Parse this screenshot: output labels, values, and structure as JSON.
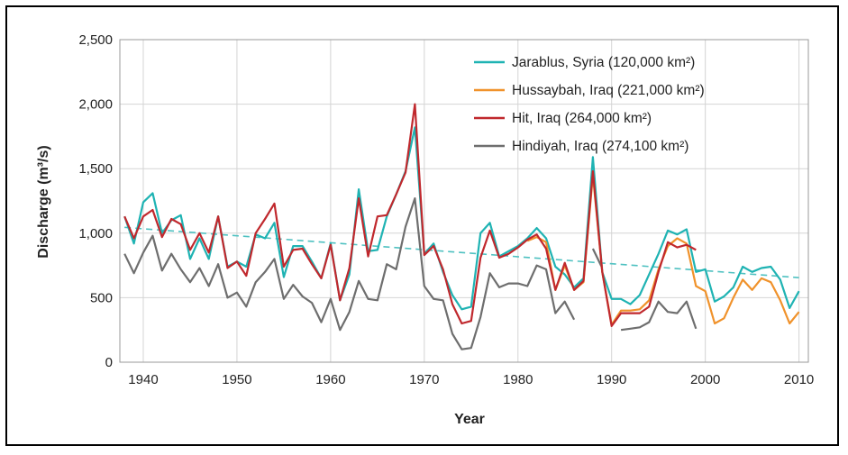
{
  "chart_data": {
    "type": "line",
    "title": "",
    "xlabel": "Year",
    "ylabel": "Discharge (m³/s)",
    "xlim": [
      1937.5,
      2011
    ],
    "ylim": [
      0,
      2500
    ],
    "xticks": [
      1940,
      1950,
      1960,
      1970,
      1980,
      1990,
      2000,
      2010
    ],
    "yticks": [
      0,
      500,
      1000,
      1500,
      2000,
      2500
    ],
    "xtick_labels": [
      "1940",
      "1950",
      "1960",
      "1970",
      "1980",
      "1990",
      "2000",
      "2010"
    ],
    "ytick_labels": [
      "0",
      "500",
      "1,000",
      "1,500",
      "2,000",
      "2,500"
    ],
    "grid": "vertical and horizontal",
    "legend_position": "top-right",
    "trendline": {
      "series": "Jarablus, Syria",
      "style": "dashed",
      "color": "#4fc1c1",
      "x": [
        1938,
        2010
      ],
      "y": [
        1045,
        655
      ]
    },
    "series": [
      {
        "name": "Jarablus, Syria (120,000 km²)",
        "color": "#1fb3b3",
        "x": [
          1938,
          1939,
          1940,
          1941,
          1942,
          1943,
          1944,
          1945,
          1946,
          1947,
          1948,
          1949,
          1950,
          1951,
          1952,
          1953,
          1954,
          1955,
          1956,
          1957,
          1958,
          1959,
          1960,
          1961,
          1962,
          1963,
          1964,
          1965,
          1966,
          1967,
          1968,
          1969,
          1970,
          1971,
          1972,
          1973,
          1974,
          1975,
          1976,
          1977,
          1978,
          1979,
          1980,
          1981,
          1982,
          1983,
          1984,
          1985,
          1986,
          1987,
          1988,
          1989,
          1990,
          1991,
          1992,
          1993,
          1994,
          1995,
          1996,
          1997,
          1998,
          1999,
          2000,
          2001,
          2002,
          2003,
          2004,
          2005,
          2006,
          2007,
          2008,
          2009,
          2010
        ],
        "y": [
          1130,
          920,
          1240,
          1310,
          1000,
          1100,
          1140,
          800,
          960,
          800,
          1130,
          740,
          780,
          740,
          990,
          960,
          1080,
          660,
          900,
          900,
          780,
          650,
          920,
          480,
          680,
          1340,
          860,
          870,
          1130,
          1300,
          1480,
          1820,
          840,
          920,
          700,
          520,
          410,
          430,
          1000,
          1080,
          820,
          860,
          900,
          960,
          1040,
          960,
          740,
          680,
          580,
          650,
          1590,
          700,
          490,
          490,
          450,
          520,
          680,
          840,
          1020,
          990,
          1030,
          700,
          720,
          470,
          510,
          580,
          740,
          700,
          730,
          740,
          640,
          420,
          550
        ]
      },
      {
        "name": "Hussaybah, Iraq (221,000 km²)",
        "color": "#f0922b",
        "x": [
          1981,
          1982,
          1983,
          1984,
          1985,
          1986,
          1987,
          1988,
          1989,
          1990,
          1991,
          1992,
          1993,
          1994,
          1995,
          1996,
          1997,
          1998,
          1999,
          2000,
          2001,
          2002,
          2003,
          2004,
          2005,
          2006,
          2007,
          2008,
          2009,
          2010
        ],
        "y": [
          940,
          970,
          930,
          560,
          750,
          560,
          620,
          1450,
          700,
          290,
          400,
          400,
          410,
          480,
          720,
          900,
          960,
          920,
          590,
          550,
          300,
          340,
          500,
          640,
          560,
          650,
          620,
          480,
          300,
          390
        ]
      },
      {
        "name": "Hit, Iraq (264,000 km²)",
        "color": "#c0282d",
        "x": [
          1938,
          1939,
          1940,
          1941,
          1942,
          1943,
          1944,
          1945,
          1946,
          1947,
          1948,
          1949,
          1950,
          1951,
          1952,
          1953,
          1954,
          1955,
          1956,
          1957,
          1958,
          1959,
          1960,
          1961,
          1962,
          1963,
          1964,
          1965,
          1966,
          1967,
          1968,
          1969,
          1970,
          1971,
          1972,
          1973,
          1974,
          1975,
          1976,
          1977,
          1978,
          1979,
          1980,
          1981,
          1982,
          1983,
          1984,
          1985,
          1986,
          1987,
          1988,
          1989,
          1990,
          1991,
          1992,
          1993,
          1994,
          1995,
          1996,
          1997,
          1998,
          1999
        ],
        "y": [
          1130,
          960,
          1130,
          1180,
          970,
          1110,
          1070,
          870,
          1000,
          850,
          1130,
          730,
          780,
          670,
          1000,
          1110,
          1230,
          740,
          870,
          880,
          760,
          650,
          910,
          480,
          730,
          1270,
          820,
          1130,
          1140,
          1300,
          1470,
          2000,
          830,
          900,
          720,
          450,
          300,
          320,
          810,
          1020,
          810,
          840,
          890,
          950,
          990,
          880,
          560,
          770,
          560,
          630,
          1480,
          700,
          280,
          380,
          380,
          380,
          430,
          700,
          930,
          890,
          910,
          870
        ]
      },
      {
        "name": "Hindiyah, Iraq (274,100 km²)",
        "color": "#6e6e6e",
        "x": [
          1938,
          1939,
          1940,
          1941,
          1942,
          1943,
          1944,
          1945,
          1946,
          1947,
          1948,
          1949,
          1950,
          1951,
          1952,
          1953,
          1954,
          1955,
          1956,
          1957,
          1958,
          1959,
          1960,
          1961,
          1962,
          1963,
          1964,
          1965,
          1966,
          1967,
          1968,
          1969,
          1970,
          1971,
          1972,
          1973,
          1974,
          1975,
          1976,
          1977,
          1978,
          1979,
          1980,
          1981,
          1982,
          1983,
          1984,
          1985,
          1986
        ],
        "y": [
          840,
          690,
          850,
          980,
          710,
          840,
          720,
          620,
          730,
          590,
          760,
          500,
          540,
          430,
          620,
          700,
          800,
          490,
          600,
          510,
          460,
          310,
          490,
          250,
          390,
          630,
          490,
          480,
          760,
          720,
          1050,
          1270,
          590,
          490,
          480,
          220,
          100,
          110,
          350,
          690,
          580,
          610,
          610,
          590,
          750,
          720,
          380,
          470,
          330
        ]
      },
      {
        "name": "Hindiyah, Iraq (274,100 km²)",
        "color": "#6e6e6e",
        "x": [
          1988,
          1989
        ],
        "y": [
          880,
          730
        ]
      },
      {
        "name": "Hindiyah, Iraq (274,100 km²)",
        "color": "#6e6e6e",
        "x": [
          1991,
          1992,
          1993,
          1994,
          1995,
          1996,
          1997,
          1998,
          1999
        ],
        "y": [
          250,
          260,
          270,
          310,
          470,
          390,
          380,
          470,
          260
        ]
      }
    ]
  },
  "legend": [
    {
      "label": "Jarablus, Syria (120,000 km²)",
      "color": "#1fb3b3"
    },
    {
      "label": "Hussaybah, Iraq (221,000 km²)",
      "color": "#f0922b"
    },
    {
      "label": "Hit, Iraq (264,000 km²)",
      "color": "#c0282d"
    },
    {
      "label": "Hindiyah, Iraq (274,100 km²)",
      "color": "#6e6e6e"
    }
  ]
}
